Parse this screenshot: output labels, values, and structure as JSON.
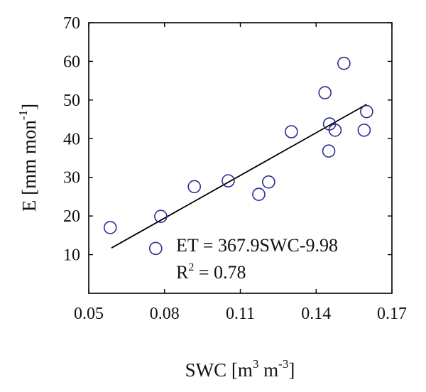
{
  "chart_data": {
    "type": "scatter",
    "title": "",
    "xlabel": {
      "base": "SWC [m",
      "sup1": "3",
      "mid": " m",
      "sup2": "-3",
      "end": "]"
    },
    "ylabel": {
      "base": "E [mm mon",
      "sup": "-1",
      "end": "]"
    },
    "xlim": [
      0.05,
      0.17
    ],
    "ylim": [
      0,
      70
    ],
    "xticks": [
      0.05,
      0.08,
      0.11,
      0.14,
      0.17
    ],
    "yticks": [
      10,
      20,
      30,
      40,
      50,
      60,
      70
    ],
    "xtick_labels": [
      "0.05",
      "0.08",
      "0.11",
      "0.14",
      "0.17"
    ],
    "ytick_labels": [
      "10",
      "20",
      "30",
      "40",
      "50",
      "60",
      "70"
    ],
    "grid": false,
    "marker_color": "#2d2d8f",
    "line_color": "#000000",
    "points": [
      {
        "x": 0.0585,
        "y": 17.0
      },
      {
        "x": 0.0765,
        "y": 11.6
      },
      {
        "x": 0.0785,
        "y": 19.9
      },
      {
        "x": 0.0918,
        "y": 27.6
      },
      {
        "x": 0.1052,
        "y": 29.1
      },
      {
        "x": 0.1173,
        "y": 25.6
      },
      {
        "x": 0.1212,
        "y": 28.8
      },
      {
        "x": 0.1302,
        "y": 41.8
      },
      {
        "x": 0.1435,
        "y": 51.9
      },
      {
        "x": 0.145,
        "y": 36.8
      },
      {
        "x": 0.1453,
        "y": 43.8
      },
      {
        "x": 0.1475,
        "y": 42.2
      },
      {
        "x": 0.151,
        "y": 59.5
      },
      {
        "x": 0.159,
        "y": 42.2
      },
      {
        "x": 0.16,
        "y": 47.0
      }
    ],
    "fit": {
      "slope": 367.9,
      "intercept": -9.98,
      "x_range": [
        0.059,
        0.16
      ]
    },
    "annotations": {
      "equation": "ET = 367.9SWC-9.98",
      "r2_base": "R",
      "r2_sup": "2",
      "r2_rest": " = 0.78"
    }
  }
}
